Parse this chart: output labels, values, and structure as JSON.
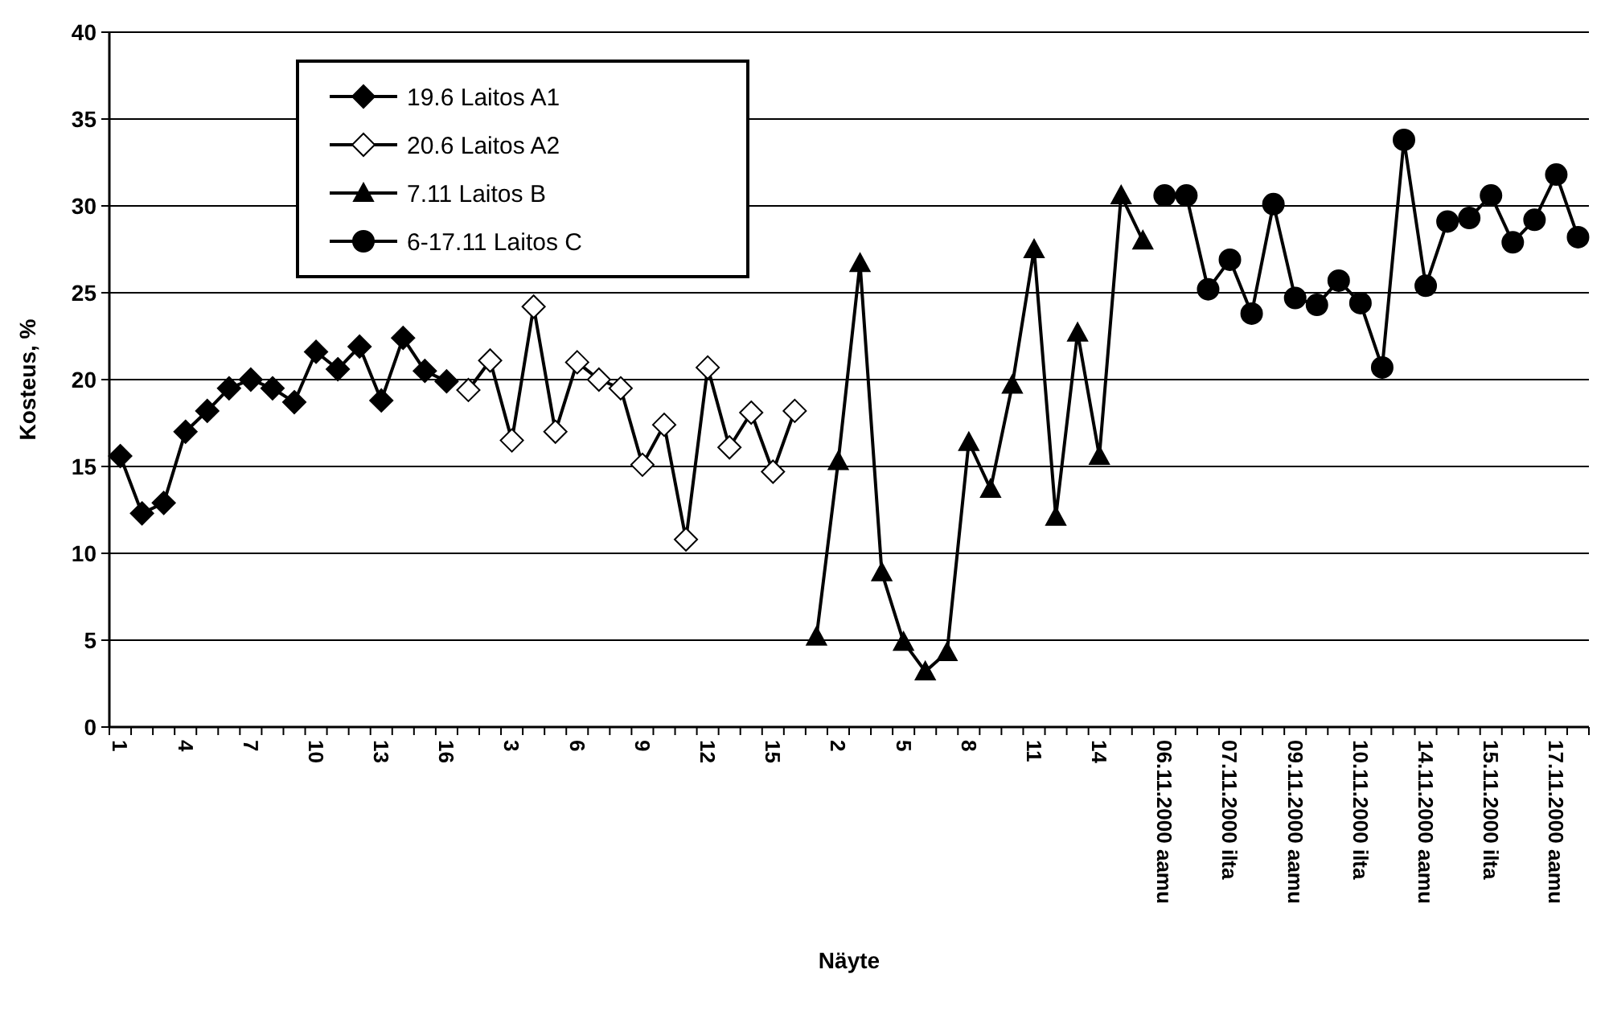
{
  "chart_data": {
    "type": "line",
    "xlabel": "Näyte",
    "ylabel": "Kosteus, %",
    "ylim": [
      0,
      40
    ],
    "yticks": [
      0,
      5,
      10,
      15,
      20,
      25,
      30,
      35,
      40
    ],
    "grid": "y",
    "legend": "top left",
    "line_style": "solid",
    "categories": [
      "1",
      null,
      null,
      "4",
      null,
      null,
      "7",
      null,
      null,
      "10",
      null,
      null,
      "13",
      null,
      null,
      "16",
      null,
      null,
      "3",
      null,
      null,
      "6",
      null,
      null,
      "9",
      null,
      null,
      "12",
      null,
      null,
      "15",
      null,
      null,
      "2",
      null,
      null,
      "5",
      null,
      null,
      "8",
      null,
      null,
      "11",
      null,
      null,
      "14",
      null,
      null,
      "06.11.2000 aamu",
      null,
      null,
      "07.11.2000 ilta",
      null,
      null,
      "09.11.2000 aamu",
      null,
      null,
      "10.11.2000 ilta",
      null,
      null,
      "14.11.2000 aamu",
      null,
      null,
      "15.11.2000 ilta",
      null,
      null,
      "17.11.2000 aamu",
      null
    ],
    "series": [
      {
        "name": "19.6 Laitos A1",
        "color": "#000000",
        "marker": "diamond",
        "values": [
          15.6,
          12.3,
          12.9,
          17,
          18.2,
          19.5,
          20,
          19.5,
          18.7,
          21.6,
          20.6,
          21.9,
          18.8,
          22.4,
          20.5,
          19.9,
          null,
          null,
          null,
          null,
          null,
          null,
          null,
          null,
          null,
          null,
          null,
          null,
          null,
          null,
          null,
          null,
          null,
          null,
          null,
          null,
          null,
          null,
          null,
          null,
          null,
          null,
          null,
          null,
          null,
          null,
          null,
          null,
          null,
          null,
          null,
          null,
          null,
          null,
          null,
          null,
          null,
          null,
          null,
          null,
          null,
          null,
          null,
          null,
          null,
          null,
          null,
          null
        ]
      },
      {
        "name": "20.6 Laitos A2",
        "color": "#ffffff",
        "marker": "diamond",
        "values": [
          null,
          null,
          null,
          null,
          null,
          null,
          null,
          null,
          null,
          null,
          null,
          null,
          null,
          null,
          null,
          null,
          19.4,
          21.1,
          16.5,
          24.2,
          17,
          21,
          20,
          19.5,
          15.1,
          17.4,
          10.8,
          20.7,
          16.1,
          18.1,
          14.7,
          18.2,
          null,
          null,
          null,
          null,
          null,
          null,
          null,
          null,
          null,
          null,
          null,
          null,
          null,
          null,
          null,
          null,
          null,
          null,
          null,
          null,
          null,
          null,
          null,
          null,
          null,
          null,
          null,
          null,
          null,
          null,
          null,
          null,
          null,
          null,
          null,
          null
        ]
      },
      {
        "name": "7.11 Laitos B",
        "color": "#000000",
        "marker": "triangle",
        "values": [
          null,
          null,
          null,
          null,
          null,
          null,
          null,
          null,
          null,
          null,
          null,
          null,
          null,
          null,
          null,
          null,
          null,
          null,
          null,
          null,
          null,
          null,
          null,
          null,
          null,
          null,
          null,
          null,
          null,
          null,
          null,
          null,
          5.2,
          15.3,
          26.7,
          8.9,
          4.9,
          3.2,
          4.3,
          16.4,
          13.7,
          19.7,
          27.5,
          12.1,
          22.7,
          15.6,
          30.6,
          28,
          null,
          null,
          null,
          null,
          null,
          null,
          null,
          null,
          null,
          null,
          null,
          null,
          null,
          null,
          null,
          null,
          null,
          null,
          null,
          null
        ]
      },
      {
        "name": "6-17.11 Laitos C",
        "color": "#000000",
        "marker": "circle",
        "values": [
          null,
          null,
          null,
          null,
          null,
          null,
          null,
          null,
          null,
          null,
          null,
          null,
          null,
          null,
          null,
          null,
          null,
          null,
          null,
          null,
          null,
          null,
          null,
          null,
          null,
          null,
          null,
          null,
          null,
          null,
          null,
          null,
          null,
          null,
          null,
          null,
          null,
          null,
          null,
          null,
          null,
          null,
          null,
          null,
          null,
          null,
          null,
          null,
          30.6,
          30.6,
          25.2,
          26.9,
          23.8,
          30.1,
          24.7,
          24.3,
          25.7,
          24.4,
          20.7,
          33.8,
          25.4,
          29.1,
          29.3,
          30.6,
          27.9,
          29.2,
          31.8,
          28.2
        ]
      }
    ]
  }
}
